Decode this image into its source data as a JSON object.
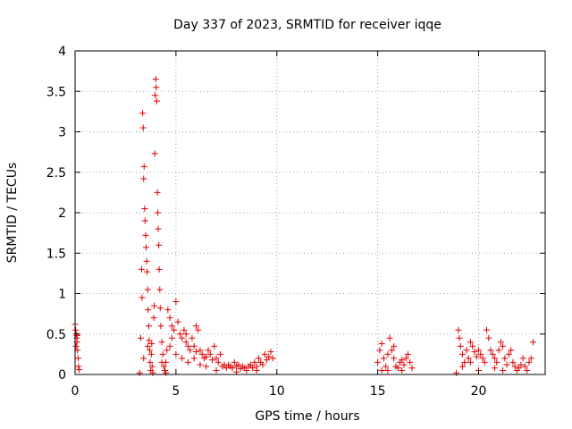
{
  "chart_data": {
    "type": "scatter",
    "title": "Day 337 of 2023, SRMTID for receiver iqqe",
    "xlabel": "GPS time / hours",
    "ylabel": "SRMTID / TECUs",
    "xlim": [
      0,
      23.3
    ],
    "ylim": [
      0,
      4
    ],
    "xticks": [
      0,
      5,
      10,
      15,
      20
    ],
    "yticks": [
      0,
      0.5,
      1,
      1.5,
      2,
      2.5,
      3,
      3.5,
      4
    ],
    "xtick_labels": [
      "0",
      "5",
      "10",
      "15",
      "20"
    ],
    "ytick_labels": [
      "0",
      "0.5",
      "1",
      "1.5",
      "2",
      "2.5",
      "3",
      "3.5",
      "4"
    ],
    "grid": true,
    "marker": "plus",
    "color": "#e00000",
    "series": [
      {
        "name": "SRMTID",
        "points": [
          [
            0.0,
            0.62
          ],
          [
            0.03,
            0.55
          ],
          [
            0.05,
            0.5
          ],
          [
            0.08,
            0.45
          ],
          [
            0.1,
            0.4
          ],
          [
            0.12,
            0.3
          ],
          [
            0.15,
            0.2
          ],
          [
            0.17,
            0.1
          ],
          [
            0.2,
            0.06
          ],
          [
            0.05,
            0.35
          ],
          [
            0.1,
            0.48
          ],
          [
            3.2,
            0.02
          ],
          [
            3.25,
            0.45
          ],
          [
            3.3,
            1.3
          ],
          [
            3.32,
            0.95
          ],
          [
            3.35,
            3.23
          ],
          [
            3.38,
            3.05
          ],
          [
            3.4,
            2.42
          ],
          [
            3.42,
            2.57
          ],
          [
            3.45,
            2.05
          ],
          [
            3.47,
            1.9
          ],
          [
            3.5,
            1.72
          ],
          [
            3.52,
            1.57
          ],
          [
            3.55,
            1.4
          ],
          [
            3.57,
            1.27
          ],
          [
            3.6,
            1.05
          ],
          [
            3.62,
            0.8
          ],
          [
            3.65,
            0.6
          ],
          [
            3.67,
            0.42
          ],
          [
            3.7,
            0.3
          ],
          [
            3.72,
            0.15
          ],
          [
            3.75,
            0.05
          ],
          [
            3.78,
            0.25
          ],
          [
            3.8,
            0.38
          ],
          [
            3.82,
            0.1
          ],
          [
            3.85,
            0.02
          ],
          [
            3.9,
            0.7
          ],
          [
            3.92,
            0.85
          ],
          [
            3.95,
            2.73
          ],
          [
            3.97,
            3.45
          ],
          [
            4.0,
            3.65
          ],
          [
            4.02,
            3.55
          ],
          [
            4.05,
            3.38
          ],
          [
            4.08,
            2.25
          ],
          [
            4.1,
            2.0
          ],
          [
            4.12,
            1.8
          ],
          [
            4.15,
            1.6
          ],
          [
            4.17,
            1.3
          ],
          [
            4.2,
            1.05
          ],
          [
            4.22,
            0.82
          ],
          [
            4.25,
            0.6
          ],
          [
            4.3,
            0.4
          ],
          [
            4.35,
            0.25
          ],
          [
            4.4,
            0.1
          ],
          [
            4.45,
            0.05
          ],
          [
            4.5,
            0.15
          ],
          [
            4.55,
            0.3
          ],
          [
            3.6,
            0.35
          ],
          [
            3.4,
            0.2
          ],
          [
            4.3,
            0.15
          ],
          [
            4.5,
            0.02
          ],
          [
            4.6,
            0.8
          ],
          [
            4.7,
            0.7
          ],
          [
            4.8,
            0.6
          ],
          [
            4.9,
            0.55
          ],
          [
            5.0,
            0.9
          ],
          [
            5.1,
            0.65
          ],
          [
            5.2,
            0.5
          ],
          [
            5.3,
            0.45
          ],
          [
            5.4,
            0.55
          ],
          [
            5.5,
            0.4
          ],
          [
            5.6,
            0.35
          ],
          [
            5.7,
            0.3
          ],
          [
            5.8,
            0.45
          ],
          [
            5.9,
            0.35
          ],
          [
            6.0,
            0.28
          ],
          [
            6.1,
            0.55
          ],
          [
            6.2,
            0.3
          ],
          [
            6.3,
            0.25
          ],
          [
            6.4,
            0.2
          ],
          [
            6.5,
            0.22
          ],
          [
            6.6,
            0.3
          ],
          [
            6.7,
            0.25
          ],
          [
            6.8,
            0.18
          ],
          [
            6.9,
            0.35
          ],
          [
            7.0,
            0.2
          ],
          [
            7.1,
            0.15
          ],
          [
            7.2,
            0.25
          ],
          [
            7.3,
            0.1
          ],
          [
            7.4,
            0.12
          ],
          [
            7.5,
            0.08
          ],
          [
            7.6,
            0.12
          ],
          [
            7.7,
            0.1
          ],
          [
            7.8,
            0.08
          ],
          [
            7.9,
            0.15
          ],
          [
            8.0,
            0.1
          ],
          [
            8.1,
            0.12
          ],
          [
            8.2,
            0.07
          ],
          [
            8.3,
            0.1
          ],
          [
            8.4,
            0.08
          ],
          [
            8.5,
            0.05
          ],
          [
            8.6,
            0.1
          ],
          [
            8.7,
            0.12
          ],
          [
            8.8,
            0.08
          ],
          [
            8.9,
            0.15
          ],
          [
            9.0,
            0.1
          ],
          [
            9.1,
            0.2
          ],
          [
            9.2,
            0.15
          ],
          [
            9.3,
            0.12
          ],
          [
            9.4,
            0.25
          ],
          [
            9.5,
            0.18
          ],
          [
            9.6,
            0.22
          ],
          [
            9.7,
            0.28
          ],
          [
            9.8,
            0.2
          ],
          [
            4.7,
            0.35
          ],
          [
            5.0,
            0.25
          ],
          [
            5.3,
            0.2
          ],
          [
            5.6,
            0.15
          ],
          [
            5.9,
            0.2
          ],
          [
            6.2,
            0.12
          ],
          [
            6.5,
            0.1
          ],
          [
            7.0,
            0.05
          ],
          [
            8.0,
            0.03
          ],
          [
            9.0,
            0.05
          ],
          [
            4.8,
            0.45
          ],
          [
            5.5,
            0.5
          ],
          [
            6.0,
            0.6
          ],
          [
            15.0,
            0.15
          ],
          [
            15.1,
            0.3
          ],
          [
            15.2,
            0.38
          ],
          [
            15.3,
            0.2
          ],
          [
            15.4,
            0.1
          ],
          [
            15.5,
            0.05
          ],
          [
            15.6,
            0.45
          ],
          [
            15.7,
            0.3
          ],
          [
            15.8,
            0.2
          ],
          [
            15.9,
            0.1
          ],
          [
            16.0,
            0.08
          ],
          [
            16.1,
            0.15
          ],
          [
            16.2,
            0.05
          ],
          [
            16.3,
            0.12
          ],
          [
            16.4,
            0.2
          ],
          [
            16.5,
            0.25
          ],
          [
            16.6,
            0.15
          ],
          [
            16.7,
            0.08
          ],
          [
            15.2,
            0.05
          ],
          [
            15.5,
            0.25
          ],
          [
            15.8,
            0.35
          ],
          [
            16.2,
            0.18
          ],
          [
            18.9,
            0.02
          ],
          [
            19.0,
            0.55
          ],
          [
            19.05,
            0.45
          ],
          [
            19.1,
            0.35
          ],
          [
            19.2,
            0.25
          ],
          [
            19.3,
            0.15
          ],
          [
            19.4,
            0.3
          ],
          [
            19.5,
            0.2
          ],
          [
            19.6,
            0.4
          ],
          [
            19.7,
            0.35
          ],
          [
            19.8,
            0.28
          ],
          [
            19.9,
            0.22
          ],
          [
            20.0,
            0.3
          ],
          [
            20.1,
            0.25
          ],
          [
            20.2,
            0.2
          ],
          [
            20.3,
            0.15
          ],
          [
            20.4,
            0.55
          ],
          [
            20.5,
            0.45
          ],
          [
            20.6,
            0.3
          ],
          [
            20.7,
            0.25
          ],
          [
            20.8,
            0.2
          ],
          [
            20.9,
            0.15
          ],
          [
            21.0,
            0.3
          ],
          [
            21.1,
            0.4
          ],
          [
            21.2,
            0.35
          ],
          [
            21.3,
            0.2
          ],
          [
            21.4,
            0.12
          ],
          [
            21.5,
            0.25
          ],
          [
            21.6,
            0.3
          ],
          [
            21.7,
            0.15
          ],
          [
            21.8,
            0.1
          ],
          [
            21.9,
            0.05
          ],
          [
            22.0,
            0.08
          ],
          [
            22.1,
            0.12
          ],
          [
            22.2,
            0.2
          ],
          [
            22.3,
            0.1
          ],
          [
            22.4,
            0.05
          ],
          [
            22.5,
            0.15
          ],
          [
            22.6,
            0.2
          ],
          [
            22.7,
            0.4
          ],
          [
            19.2,
            0.1
          ],
          [
            19.6,
            0.15
          ],
          [
            20.0,
            0.05
          ],
          [
            20.8,
            0.08
          ],
          [
            21.2,
            0.05
          ]
        ]
      }
    ]
  }
}
